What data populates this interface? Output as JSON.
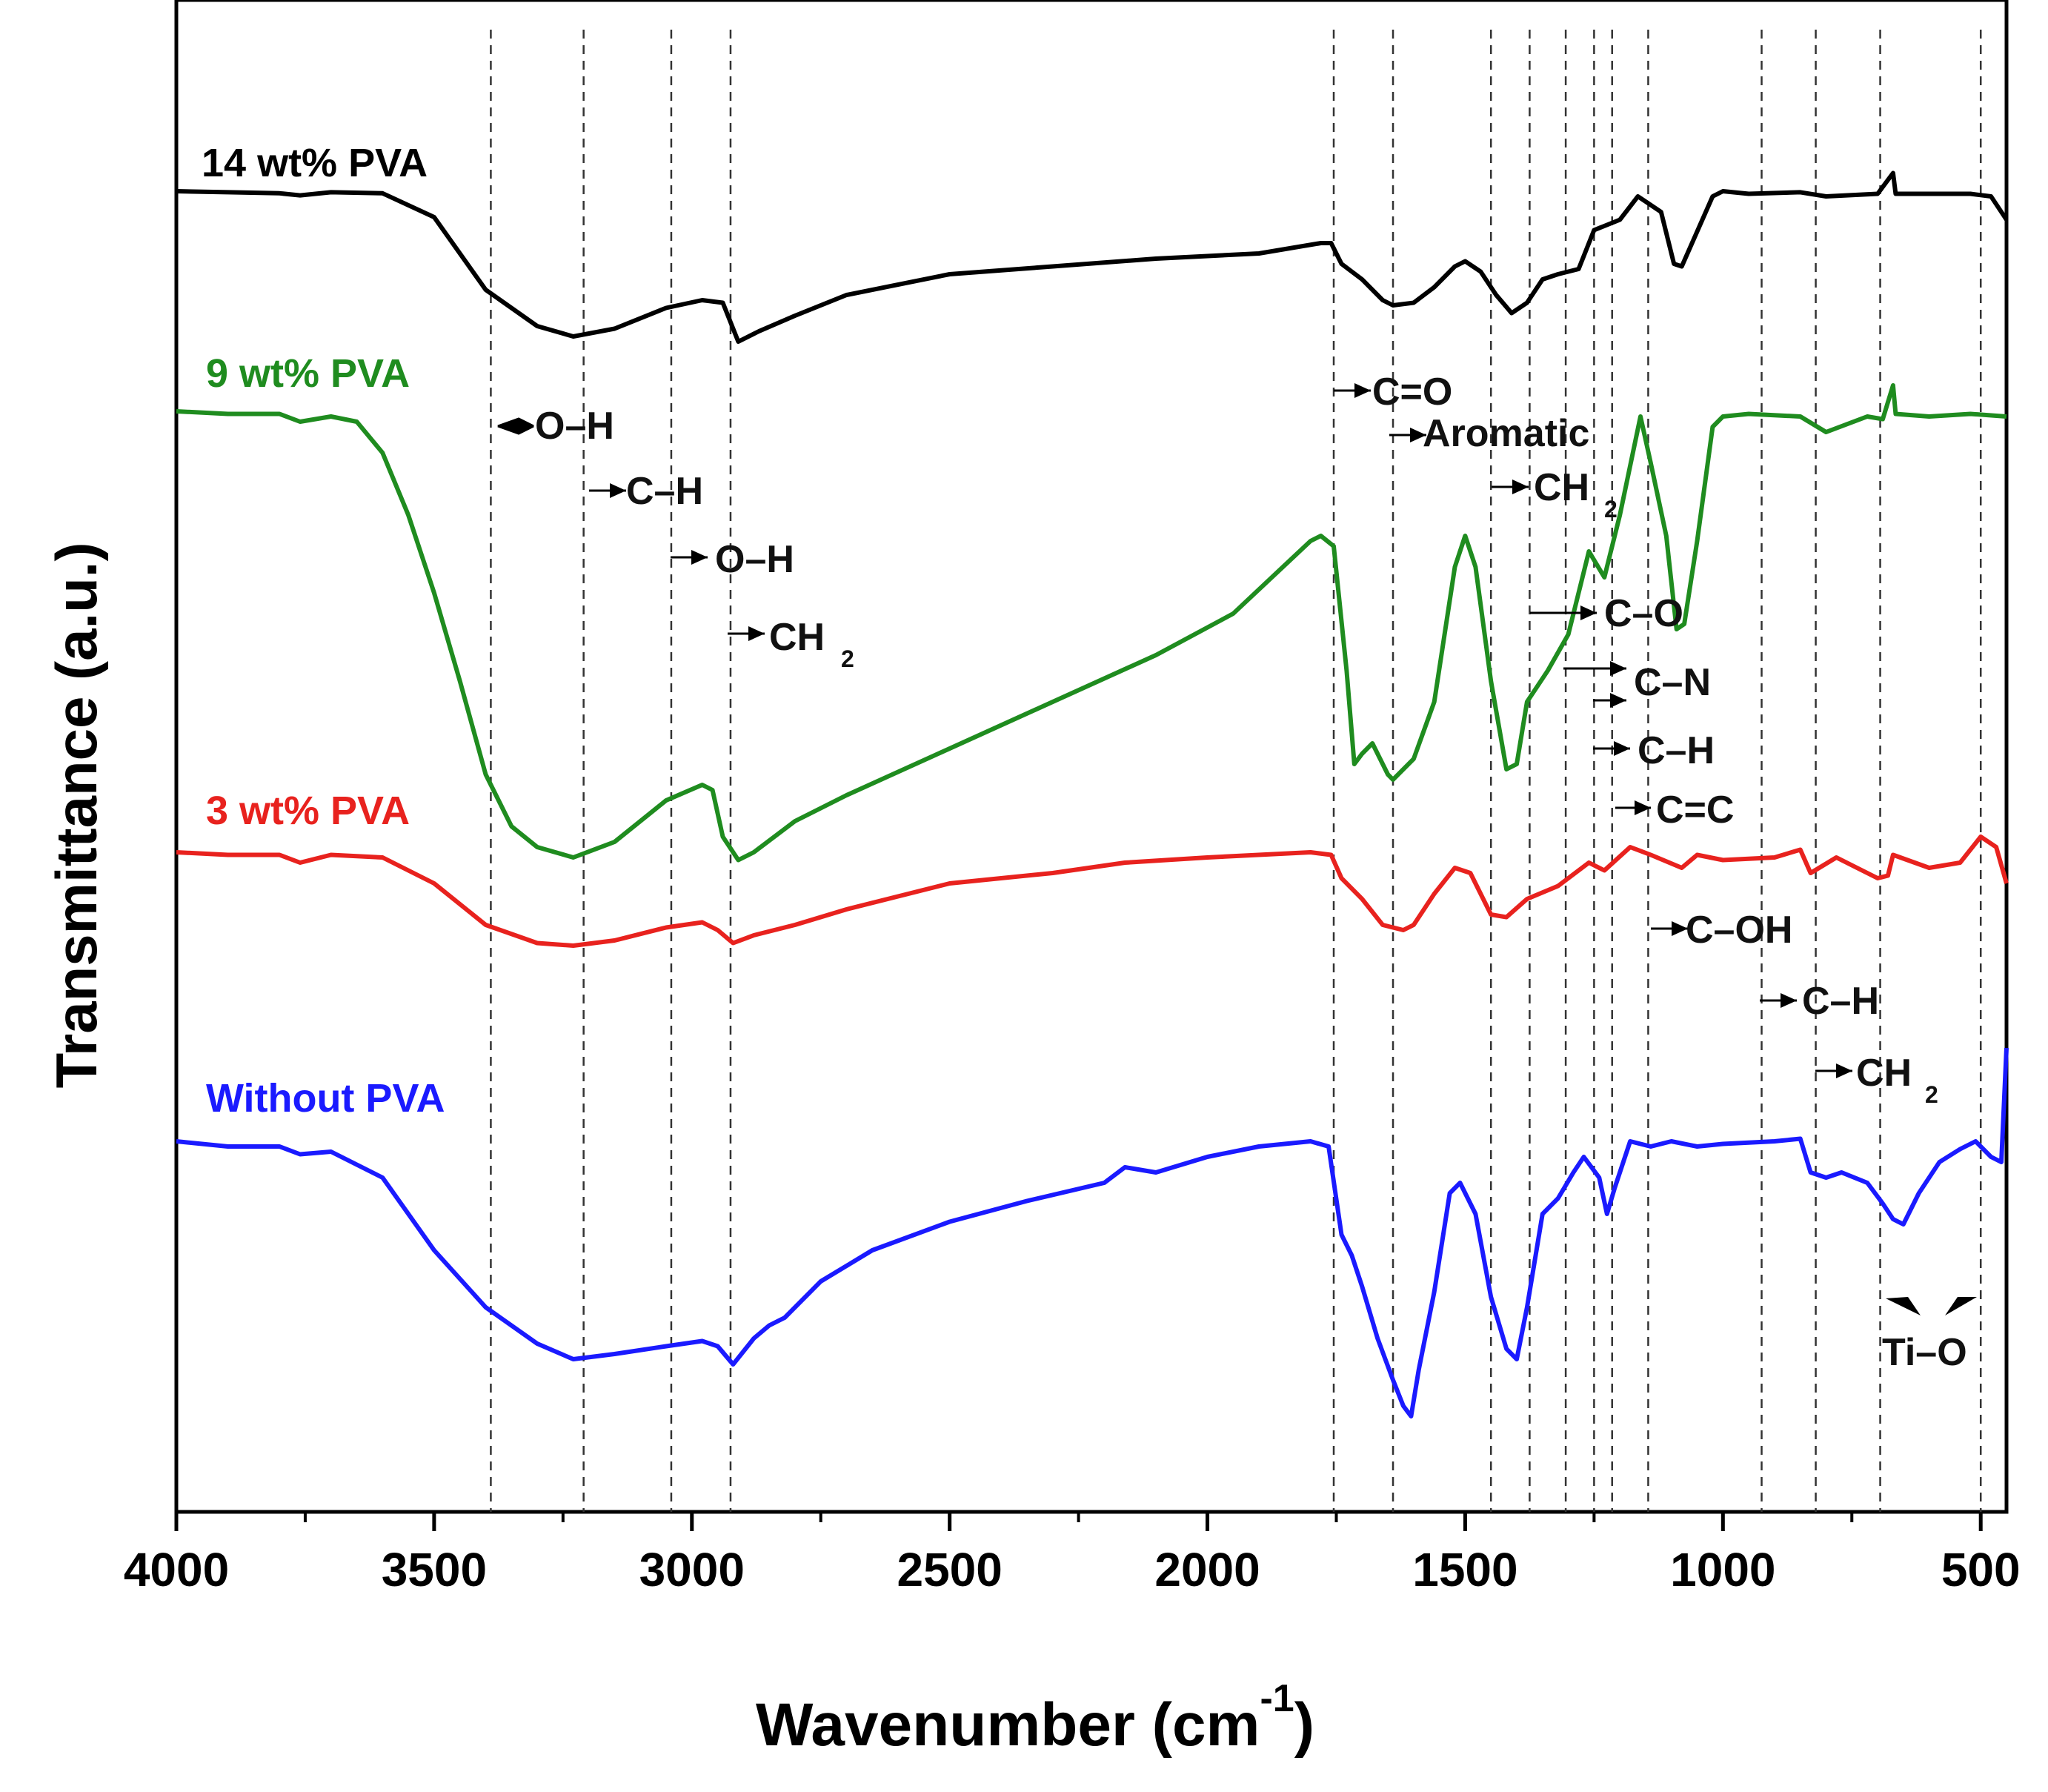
{
  "chart_data": {
    "type": "line",
    "title": "",
    "xlabel": "Wavenumber (cm",
    "xlabel_sup": "-1",
    "xlabel_close": ")",
    "ylabel": "Transmittance (a.u.)",
    "xlim": [
      4000,
      450
    ],
    "x_reversed": true,
    "x_ticks": [
      "4000",
      "3500",
      "3000",
      "2500",
      "2000",
      "1500",
      "1000",
      "500"
    ],
    "x_tick_values": [
      4000,
      3500,
      3000,
      2500,
      2000,
      1500,
      1000,
      500
    ],
    "y_ticks_shown": false,
    "grid": false,
    "dashed_lines_cm": [
      3390,
      3210,
      3040,
      2925,
      1755,
      1640,
      1450,
      1375,
      1305,
      1250,
      1215,
      1145,
      925,
      820,
      695,
      500
    ],
    "series": [
      {
        "name": "14 wt% PVA",
        "color": "#000000",
        "offset": 0,
        "scale": 0.7,
        "points": [
          [
            4000,
            0
          ],
          [
            3900,
            -2
          ],
          [
            3800,
            -4
          ],
          [
            3760,
            -8
          ],
          [
            3700,
            -2
          ],
          [
            3600,
            -4
          ],
          [
            3500,
            -50
          ],
          [
            3400,
            -190
          ],
          [
            3300,
            -260
          ],
          [
            3230,
            -280
          ],
          [
            3150,
            -265
          ],
          [
            3050,
            -225
          ],
          [
            2980,
            -210
          ],
          [
            2940,
            -215
          ],
          [
            2910,
            -290
          ],
          [
            2870,
            -270
          ],
          [
            2800,
            -240
          ],
          [
            2700,
            -200
          ],
          [
            2500,
            -160
          ],
          [
            2300,
            -145
          ],
          [
            2100,
            -130
          ],
          [
            1900,
            -120
          ],
          [
            1780,
            -100
          ],
          [
            1760,
            -100
          ],
          [
            1740,
            -140
          ],
          [
            1700,
            -170
          ],
          [
            1660,
            -210
          ],
          [
            1640,
            -220
          ],
          [
            1600,
            -215
          ],
          [
            1560,
            -185
          ],
          [
            1520,
            -145
          ],
          [
            1500,
            -135
          ],
          [
            1470,
            -155
          ],
          [
            1440,
            -200
          ],
          [
            1410,
            -235
          ],
          [
            1380,
            -215
          ],
          [
            1350,
            -170
          ],
          [
            1320,
            -160
          ],
          [
            1280,
            -150
          ],
          [
            1250,
            -75
          ],
          [
            1200,
            -55
          ],
          [
            1165,
            -10
          ],
          [
            1150,
            -20
          ],
          [
            1120,
            -40
          ],
          [
            1095,
            -140
          ],
          [
            1080,
            -145
          ],
          [
            1060,
            -100
          ],
          [
            1020,
            -10
          ],
          [
            1000,
            0
          ],
          [
            950,
            -5
          ],
          [
            850,
            -2
          ],
          [
            800,
            -10
          ],
          [
            700,
            -5
          ],
          [
            670,
            35
          ],
          [
            665,
            -5
          ],
          [
            600,
            -5
          ],
          [
            520,
            -5
          ],
          [
            480,
            -10
          ],
          [
            450,
            -55
          ]
        ]
      },
      {
        "name": "9 wt% PVA",
        "color": "#1f8c1f",
        "offset": 0,
        "scale": 0.7,
        "points": [
          [
            4000,
            0
          ],
          [
            3900,
            -5
          ],
          [
            3800,
            -5
          ],
          [
            3760,
            -20
          ],
          [
            3700,
            -10
          ],
          [
            3650,
            -20
          ],
          [
            3600,
            -80
          ],
          [
            3550,
            -200
          ],
          [
            3500,
            -350
          ],
          [
            3450,
            -520
          ],
          [
            3400,
            -700
          ],
          [
            3350,
            -800
          ],
          [
            3300,
            -840
          ],
          [
            3230,
            -860
          ],
          [
            3150,
            -830
          ],
          [
            3050,
            -750
          ],
          [
            2980,
            -720
          ],
          [
            2960,
            -730
          ],
          [
            2940,
            -820
          ],
          [
            2910,
            -865
          ],
          [
            2880,
            -850
          ],
          [
            2800,
            -790
          ],
          [
            2700,
            -740
          ],
          [
            2500,
            -650
          ],
          [
            2300,
            -560
          ],
          [
            2100,
            -470
          ],
          [
            1950,
            -390
          ],
          [
            1800,
            -250
          ],
          [
            1780,
            -240
          ],
          [
            1755,
            -260
          ],
          [
            1730,
            -500
          ],
          [
            1715,
            -680
          ],
          [
            1700,
            -660
          ],
          [
            1680,
            -640
          ],
          [
            1650,
            -700
          ],
          [
            1640,
            -710
          ],
          [
            1600,
            -670
          ],
          [
            1560,
            -560
          ],
          [
            1520,
            -300
          ],
          [
            1500,
            -240
          ],
          [
            1480,
            -300
          ],
          [
            1450,
            -520
          ],
          [
            1420,
            -690
          ],
          [
            1400,
            -680
          ],
          [
            1380,
            -560
          ],
          [
            1340,
            -500
          ],
          [
            1300,
            -430
          ],
          [
            1260,
            -270
          ],
          [
            1230,
            -320
          ],
          [
            1200,
            -200
          ],
          [
            1160,
            -10
          ],
          [
            1140,
            -100
          ],
          [
            1110,
            -240
          ],
          [
            1090,
            -420
          ],
          [
            1075,
            -410
          ],
          [
            1050,
            -250
          ],
          [
            1020,
            -30
          ],
          [
            1000,
            -10
          ],
          [
            950,
            -5
          ],
          [
            850,
            -10
          ],
          [
            800,
            -40
          ],
          [
            720,
            -10
          ],
          [
            690,
            -15
          ],
          [
            670,
            50
          ],
          [
            665,
            -5
          ],
          [
            600,
            -10
          ],
          [
            520,
            -5
          ],
          [
            450,
            -10
          ]
        ]
      },
      {
        "name": "3 wt% PVA",
        "color": "#e8221e",
        "offset": 0,
        "scale": 0.7,
        "points": [
          [
            4000,
            0
          ],
          [
            3900,
            -5
          ],
          [
            3800,
            -5
          ],
          [
            3760,
            -20
          ],
          [
            3700,
            -5
          ],
          [
            3600,
            -10
          ],
          [
            3500,
            -60
          ],
          [
            3400,
            -140
          ],
          [
            3300,
            -175
          ],
          [
            3230,
            -180
          ],
          [
            3150,
            -170
          ],
          [
            3050,
            -145
          ],
          [
            2980,
            -135
          ],
          [
            2950,
            -150
          ],
          [
            2920,
            -175
          ],
          [
            2880,
            -160
          ],
          [
            2800,
            -140
          ],
          [
            2700,
            -110
          ],
          [
            2500,
            -60
          ],
          [
            2300,
            -40
          ],
          [
            2160,
            -20
          ],
          [
            2000,
            -10
          ],
          [
            1800,
            0
          ],
          [
            1760,
            -5
          ],
          [
            1740,
            -50
          ],
          [
            1700,
            -90
          ],
          [
            1660,
            -140
          ],
          [
            1620,
            -150
          ],
          [
            1600,
            -140
          ],
          [
            1560,
            -80
          ],
          [
            1520,
            -30
          ],
          [
            1490,
            -40
          ],
          [
            1450,
            -120
          ],
          [
            1420,
            -125
          ],
          [
            1380,
            -90
          ],
          [
            1320,
            -65
          ],
          [
            1260,
            -20
          ],
          [
            1230,
            -35
          ],
          [
            1180,
            10
          ],
          [
            1140,
            -5
          ],
          [
            1080,
            -30
          ],
          [
            1050,
            -5
          ],
          [
            1000,
            -15
          ],
          [
            900,
            -10
          ],
          [
            850,
            5
          ],
          [
            830,
            -40
          ],
          [
            780,
            -10
          ],
          [
            740,
            -30
          ],
          [
            700,
            -50
          ],
          [
            680,
            -45
          ],
          [
            670,
            -5
          ],
          [
            600,
            -30
          ],
          [
            540,
            -20
          ],
          [
            500,
            30
          ],
          [
            470,
            10
          ],
          [
            450,
            -60
          ]
        ]
      },
      {
        "name": "Without PVA",
        "color": "#1a1aff",
        "offset": 0,
        "scale": 0.7,
        "points": [
          [
            4000,
            0
          ],
          [
            3900,
            -10
          ],
          [
            3800,
            -10
          ],
          [
            3760,
            -25
          ],
          [
            3700,
            -20
          ],
          [
            3600,
            -70
          ],
          [
            3500,
            -210
          ],
          [
            3400,
            -320
          ],
          [
            3300,
            -390
          ],
          [
            3230,
            -420
          ],
          [
            3150,
            -410
          ],
          [
            3050,
            -395
          ],
          [
            2980,
            -385
          ],
          [
            2950,
            -395
          ],
          [
            2920,
            -430
          ],
          [
            2880,
            -380
          ],
          [
            2850,
            -355
          ],
          [
            2820,
            -340
          ],
          [
            2750,
            -270
          ],
          [
            2650,
            -210
          ],
          [
            2500,
            -155
          ],
          [
            2350,
            -115
          ],
          [
            2200,
            -80
          ],
          [
            2160,
            -50
          ],
          [
            2100,
            -60
          ],
          [
            2000,
            -30
          ],
          [
            1900,
            -10
          ],
          [
            1800,
            0
          ],
          [
            1765,
            -10
          ],
          [
            1740,
            -180
          ],
          [
            1720,
            -220
          ],
          [
            1700,
            -280
          ],
          [
            1670,
            -380
          ],
          [
            1640,
            -460
          ],
          [
            1620,
            -510
          ],
          [
            1605,
            -530
          ],
          [
            1590,
            -440
          ],
          [
            1560,
            -290
          ],
          [
            1530,
            -100
          ],
          [
            1510,
            -80
          ],
          [
            1480,
            -140
          ],
          [
            1450,
            -300
          ],
          [
            1420,
            -400
          ],
          [
            1400,
            -420
          ],
          [
            1380,
            -320
          ],
          [
            1350,
            -140
          ],
          [
            1320,
            -110
          ],
          [
            1290,
            -60
          ],
          [
            1270,
            -30
          ],
          [
            1240,
            -70
          ],
          [
            1225,
            -140
          ],
          [
            1210,
            -90
          ],
          [
            1180,
            0
          ],
          [
            1140,
            -10
          ],
          [
            1100,
            0
          ],
          [
            1050,
            -10
          ],
          [
            1000,
            -5
          ],
          [
            900,
            0
          ],
          [
            850,
            5
          ],
          [
            830,
            -60
          ],
          [
            800,
            -70
          ],
          [
            770,
            -60
          ],
          [
            720,
            -80
          ],
          [
            690,
            -120
          ],
          [
            670,
            -150
          ],
          [
            650,
            -160
          ],
          [
            620,
            -100
          ],
          [
            580,
            -40
          ],
          [
            540,
            -15
          ],
          [
            510,
            0
          ],
          [
            480,
            -30
          ],
          [
            460,
            -40
          ],
          [
            450,
            180
          ]
        ]
      }
    ],
    "series_labels": [
      "14 wt% PVA",
      "9 wt% PVA",
      "3 wt% PVA",
      "Without PVA"
    ],
    "annotations": [
      {
        "text": "O–H"
      },
      {
        "text": "C–H"
      },
      {
        "text": "O–H"
      },
      {
        "text": "CH",
        "sub": "2"
      },
      {
        "text": "C=O"
      },
      {
        "text": "Aromatic"
      },
      {
        "text": "CH",
        "sub": "2"
      },
      {
        "text": "C–O"
      },
      {
        "text": "C–N"
      },
      {
        "text": "C–H"
      },
      {
        "text": "C=C"
      },
      {
        "text": "C–OH"
      },
      {
        "text": "C–H"
      },
      {
        "text": "CH",
        "sub": "2"
      },
      {
        "text": "Ti–O"
      }
    ]
  }
}
